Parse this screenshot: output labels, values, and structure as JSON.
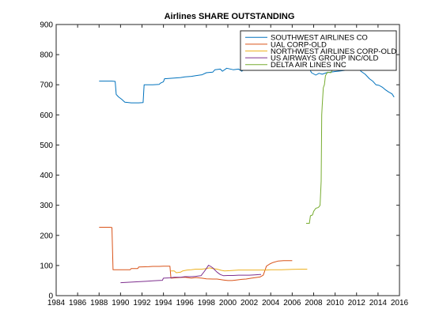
{
  "chart_data": {
    "type": "line",
    "title": "Airlines SHARE OUTSTANDING",
    "xlabel": "",
    "ylabel": "",
    "xlim": [
      1984,
      2016
    ],
    "ylim": [
      0,
      900
    ],
    "xticks": [
      1984,
      1986,
      1988,
      1990,
      1992,
      1994,
      1996,
      1998,
      2000,
      2002,
      2004,
      2006,
      2008,
      2010,
      2012,
      2014,
      2016
    ],
    "yticks": [
      0,
      100,
      200,
      300,
      400,
      500,
      600,
      700,
      800,
      900
    ],
    "grid": false,
    "legend_position": "top-right",
    "series": [
      {
        "name": "SOUTHWEST AIRLINES CO",
        "color": "#0072bd",
        "points": [
          [
            1988.0,
            712
          ],
          [
            1989.2,
            712
          ],
          [
            1989.5,
            711
          ],
          [
            1989.6,
            668
          ],
          [
            1989.8,
            660
          ],
          [
            1990.1,
            652
          ],
          [
            1990.4,
            642
          ],
          [
            1991.0,
            640
          ],
          [
            1991.7,
            640
          ],
          [
            1992.1,
            641
          ],
          [
            1992.2,
            700
          ],
          [
            1993.0,
            700
          ],
          [
            1993.6,
            701
          ],
          [
            1993.7,
            705
          ],
          [
            1994.0,
            710
          ],
          [
            1994.1,
            720
          ],
          [
            1995.0,
            722
          ],
          [
            1995.6,
            724
          ],
          [
            1996.0,
            726
          ],
          [
            1996.6,
            728
          ],
          [
            1997.0,
            730
          ],
          [
            1997.6,
            733
          ],
          [
            1998.0,
            740
          ],
          [
            1998.6,
            742
          ],
          [
            1998.8,
            750
          ],
          [
            1999.3,
            752
          ],
          [
            1999.5,
            745
          ],
          [
            1999.9,
            755
          ],
          [
            2000.5,
            750
          ],
          [
            2001.0,
            752
          ],
          [
            2001.3,
            745
          ],
          [
            2001.6,
            752
          ],
          [
            2002.2,
            755
          ],
          [
            2002.6,
            760
          ],
          [
            2003.0,
            762
          ],
          [
            2003.5,
            766
          ],
          [
            2004.0,
            765
          ],
          [
            2004.6,
            770
          ],
          [
            2005.0,
            772
          ],
          [
            2005.6,
            780
          ],
          [
            2006.0,
            782
          ],
          [
            2006.6,
            781
          ],
          [
            2007.0,
            778
          ],
          [
            2007.4,
            765
          ],
          [
            2007.8,
            740
          ],
          [
            2008.2,
            732
          ],
          [
            2008.5,
            738
          ],
          [
            2008.8,
            735
          ],
          [
            2009.2,
            740
          ],
          [
            2009.6,
            742
          ],
          [
            2010.0,
            744
          ],
          [
            2010.5,
            746
          ],
          [
            2011.0,
            748
          ],
          [
            2011.3,
            750
          ],
          [
            2011.6,
            760
          ],
          [
            2012.0,
            762
          ],
          [
            2012.4,
            745
          ],
          [
            2012.8,
            735
          ],
          [
            2013.2,
            720
          ],
          [
            2013.5,
            712
          ],
          [
            2013.8,
            700
          ],
          [
            2014.1,
            698
          ],
          [
            2014.4,
            692
          ],
          [
            2014.7,
            683
          ],
          [
            2015.0,
            676
          ],
          [
            2015.3,
            670
          ],
          [
            2015.5,
            659
          ]
        ]
      },
      {
        "name": "UAL CORP-OLD",
        "color": "#d95319",
        "points": [
          [
            1988.0,
            227
          ],
          [
            1989.0,
            227
          ],
          [
            1989.2,
            226
          ],
          [
            1989.3,
            86
          ],
          [
            1990.0,
            86
          ],
          [
            1990.9,
            86
          ],
          [
            1991.0,
            90
          ],
          [
            1991.6,
            90
          ],
          [
            1991.7,
            95
          ],
          [
            1992.6,
            96
          ],
          [
            1993.0,
            97
          ],
          [
            1993.6,
            97
          ],
          [
            1994.0,
            98
          ],
          [
            1994.6,
            98
          ],
          [
            1994.7,
            58
          ],
          [
            1995.5,
            60
          ],
          [
            1996.0,
            61
          ],
          [
            1996.6,
            58
          ],
          [
            1997.0,
            60
          ],
          [
            1997.6,
            58
          ],
          [
            1998.0,
            56
          ],
          [
            1998.6,
            55
          ],
          [
            1999.0,
            55
          ],
          [
            1999.6,
            52
          ],
          [
            2000.0,
            50
          ],
          [
            2000.4,
            50
          ],
          [
            2000.8,
            52
          ],
          [
            2001.3,
            54
          ],
          [
            2001.7,
            55
          ],
          [
            2002.2,
            58
          ],
          [
            2002.6,
            60
          ],
          [
            2003.0,
            62
          ],
          [
            2003.3,
            68
          ],
          [
            2003.6,
            98
          ],
          [
            2003.9,
            105
          ],
          [
            2004.2,
            110
          ],
          [
            2004.7,
            115
          ],
          [
            2005.2,
            116
          ],
          [
            2006.0,
            116
          ]
        ]
      },
      {
        "name": "NORTHWEST AIRLINES CORP-OLD",
        "color": "#edb120",
        "points": [
          [
            1994.7,
            82
          ],
          [
            1995.0,
            82
          ],
          [
            1995.2,
            76
          ],
          [
            1995.6,
            78
          ],
          [
            1995.8,
            82
          ],
          [
            1996.2,
            85
          ],
          [
            1996.6,
            86
          ],
          [
            1997.0,
            88
          ],
          [
            1997.6,
            88
          ],
          [
            1998.0,
            90
          ],
          [
            1998.3,
            92
          ],
          [
            1998.6,
            90
          ],
          [
            1999.0,
            88
          ],
          [
            1999.4,
            84
          ],
          [
            1999.7,
            82
          ],
          [
            2000.2,
            83
          ],
          [
            2000.6,
            84
          ],
          [
            2001.0,
            85
          ],
          [
            2002.0,
            85
          ],
          [
            2003.0,
            85
          ],
          [
            2003.6,
            85
          ],
          [
            2004.0,
            86
          ],
          [
            2005.0,
            86
          ],
          [
            2006.0,
            87
          ],
          [
            2007.0,
            88
          ],
          [
            2007.4,
            88
          ]
        ]
      },
      {
        "name": "US AIRWAYS GROUP INC/OLD",
        "color": "#7e2f8e",
        "points": [
          [
            1990.0,
            43
          ],
          [
            1990.5,
            44
          ],
          [
            1991.0,
            45
          ],
          [
            1991.5,
            46
          ],
          [
            1992.0,
            47
          ],
          [
            1992.5,
            48
          ],
          [
            1993.0,
            49
          ],
          [
            1993.5,
            50
          ],
          [
            1993.9,
            51
          ],
          [
            1994.0,
            58
          ],
          [
            1994.6,
            59
          ],
          [
            1995.0,
            61
          ],
          [
            1995.6,
            61
          ],
          [
            1996.0,
            63
          ],
          [
            1996.6,
            63
          ],
          [
            1997.0,
            64
          ],
          [
            1997.5,
            66
          ],
          [
            1997.8,
            80
          ],
          [
            1998.0,
            90
          ],
          [
            1998.2,
            101
          ],
          [
            1998.4,
            97
          ],
          [
            1998.6,
            92
          ],
          [
            1998.8,
            85
          ],
          [
            1999.0,
            78
          ],
          [
            1999.3,
            70
          ],
          [
            1999.6,
            66
          ],
          [
            2000.0,
            67
          ],
          [
            2000.5,
            67
          ],
          [
            2001.0,
            68
          ],
          [
            2001.5,
            68
          ],
          [
            2002.0,
            68
          ],
          [
            2002.5,
            69
          ],
          [
            2003.0,
            70
          ],
          [
            2003.1,
            70
          ]
        ]
      },
      {
        "name": "DELTA AIR LINES INC",
        "color": "#77ac30",
        "points": [
          [
            2007.3,
            240
          ],
          [
            2007.6,
            240
          ],
          [
            2007.7,
            265
          ],
          [
            2007.9,
            268
          ],
          [
            2008.0,
            280
          ],
          [
            2008.2,
            290
          ],
          [
            2008.4,
            292
          ],
          [
            2008.5,
            295
          ],
          [
            2008.6,
            300
          ],
          [
            2008.7,
            380
          ],
          [
            2008.75,
            600
          ],
          [
            2008.8,
            630
          ],
          [
            2008.9,
            690
          ],
          [
            2009.0,
            700
          ],
          [
            2009.1,
            730
          ],
          [
            2009.3,
            742
          ],
          [
            2009.6,
            740
          ],
          [
            2009.8,
            752
          ],
          [
            2010.0,
            784
          ],
          [
            2010.4,
            790
          ],
          [
            2010.8,
            795
          ],
          [
            2011.0,
            798
          ],
          [
            2011.5,
            800
          ],
          [
            2012.0,
            805
          ],
          [
            2012.5,
            810
          ],
          [
            2013.0,
            812
          ],
          [
            2013.5,
            816
          ],
          [
            2014.0,
            825
          ],
          [
            2014.5,
            830
          ],
          [
            2015.0,
            830
          ],
          [
            2015.2,
            822
          ],
          [
            2015.4,
            812
          ],
          [
            2015.5,
            800
          ],
          [
            2015.6,
            795
          ]
        ]
      }
    ]
  }
}
